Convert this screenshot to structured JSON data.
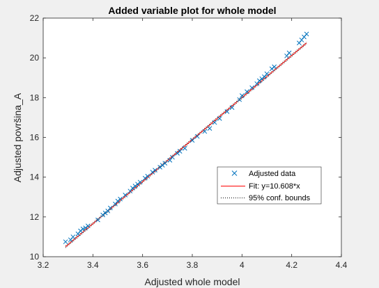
{
  "chart_data": {
    "type": "scatter",
    "title": "Added variable plot for whole model",
    "xlabel": "Adjusted whole model",
    "ylabel": "Adjusted površina_A",
    "xlim": [
      3.2,
      4.4
    ],
    "ylim": [
      10,
      22
    ],
    "xticks": [
      "3.2",
      "3.4",
      "3.6",
      "3.8",
      "4",
      "4.2",
      "4.4"
    ],
    "yticks": [
      "10",
      "12",
      "14",
      "16",
      "18",
      "20",
      "22"
    ],
    "grid": false,
    "legend_position": "right",
    "colors": {
      "data": "#0072bd",
      "fit": "#ff0000",
      "bounds": "#000000"
    },
    "series": [
      {
        "name": "Adjusted data",
        "kind": "scatter",
        "marker": "x",
        "x": [
          3.29,
          3.31,
          3.32,
          3.34,
          3.35,
          3.36,
          3.37,
          3.38,
          3.42,
          3.44,
          3.45,
          3.46,
          3.47,
          3.49,
          3.5,
          3.51,
          3.53,
          3.55,
          3.56,
          3.57,
          3.58,
          3.59,
          3.61,
          3.62,
          3.64,
          3.65,
          3.67,
          3.68,
          3.69,
          3.71,
          3.72,
          3.74,
          3.75,
          3.77,
          3.8,
          3.82,
          3.85,
          3.87,
          3.89,
          3.91,
          3.94,
          3.96,
          3.99,
          4.0,
          4.02,
          4.04,
          4.06,
          4.07,
          4.08,
          4.09,
          4.1,
          4.12,
          4.13,
          4.18,
          4.19,
          4.23,
          4.24,
          4.25,
          4.26
        ],
        "y": [
          10.75,
          10.85,
          11.0,
          11.15,
          11.3,
          11.4,
          11.45,
          11.55,
          11.85,
          12.1,
          12.2,
          12.3,
          12.45,
          12.65,
          12.8,
          12.9,
          13.1,
          13.3,
          13.45,
          13.55,
          13.65,
          13.75,
          13.95,
          14.05,
          14.25,
          14.35,
          14.5,
          14.6,
          14.7,
          14.85,
          15.0,
          15.2,
          15.3,
          15.45,
          15.85,
          16.05,
          16.3,
          16.45,
          16.75,
          16.95,
          17.3,
          17.5,
          17.9,
          18.1,
          18.3,
          18.5,
          18.7,
          18.85,
          18.95,
          19.05,
          19.2,
          19.45,
          19.55,
          20.1,
          20.25,
          20.75,
          20.9,
          21.05,
          21.2
        ]
      },
      {
        "name": "Fit: y=10.608*x",
        "kind": "line",
        "x": [
          3.29,
          4.26
        ],
        "y": [
          10.5,
          20.75
        ]
      },
      {
        "name": "95% conf. bounds",
        "kind": "line",
        "style": "dotted",
        "lower": {
          "x": [
            3.29,
            4.26
          ],
          "y": [
            10.45,
            20.7
          ]
        },
        "upper": {
          "x": [
            3.29,
            4.26
          ],
          "y": [
            10.55,
            20.8
          ]
        }
      }
    ]
  }
}
